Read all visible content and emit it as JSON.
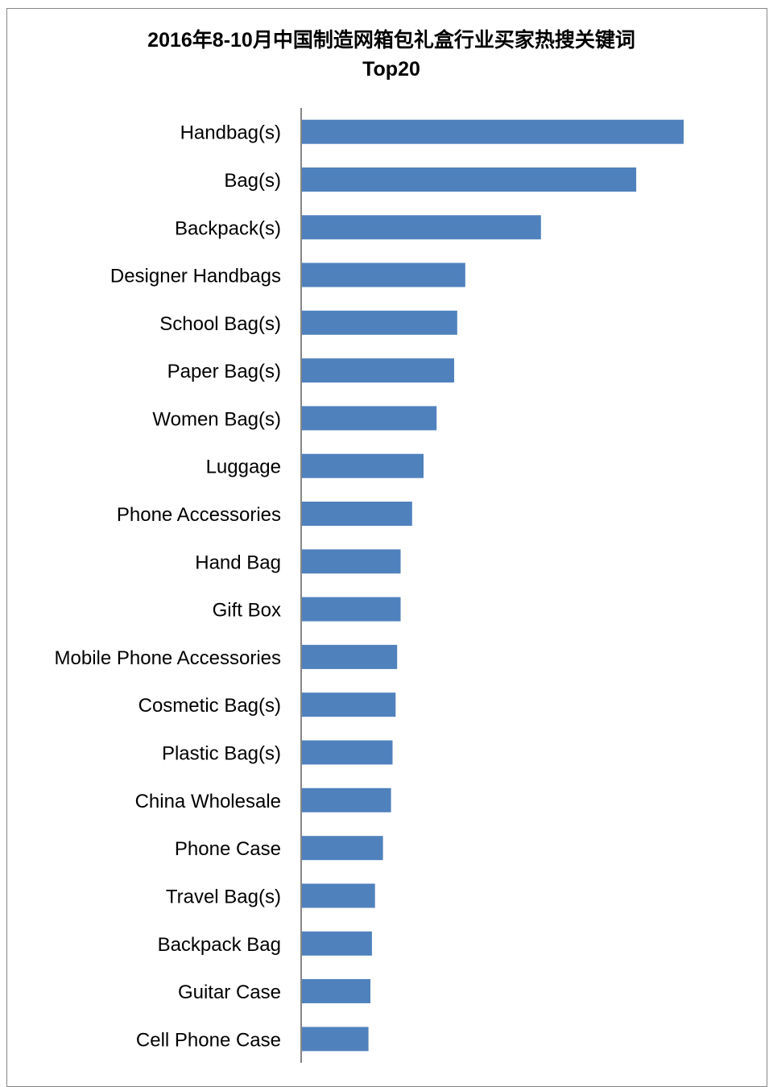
{
  "chart_data": {
    "type": "bar",
    "orientation": "horizontal",
    "title": "2016年8-10月中国制造网箱包礼盒行业买家热搜关键词",
    "subtitle": "Top20",
    "categories": [
      "Handbag(s)",
      "Bag(s)",
      "Backpack(s)",
      "Designer Handbags",
      "School Bag(s)",
      "Paper Bag(s)",
      "Women Bag(s)",
      "Luggage",
      "Phone Accessories",
      "Hand Bag",
      "Gift Box",
      "Mobile Phone Accessories",
      "Cosmetic Bag(s)",
      "Plastic Bag(s)",
      "China Wholesale",
      "Phone Case",
      "Travel Bag(s)",
      "Backpack Bag",
      "Guitar Case",
      "Cell Phone Case"
    ],
    "values": [
      100,
      87.6,
      62.7,
      42.9,
      40.8,
      40,
      35.4,
      32,
      29,
      26,
      26,
      25.1,
      24.7,
      23.9,
      23.5,
      21.4,
      19.3,
      18.5,
      18.1,
      17.6
    ],
    "xlim": [
      0,
      100
    ],
    "x_axis_visible": false,
    "grid": false,
    "legend": "none",
    "bar_color": "#4f81bd",
    "axis_color": "#868686"
  }
}
